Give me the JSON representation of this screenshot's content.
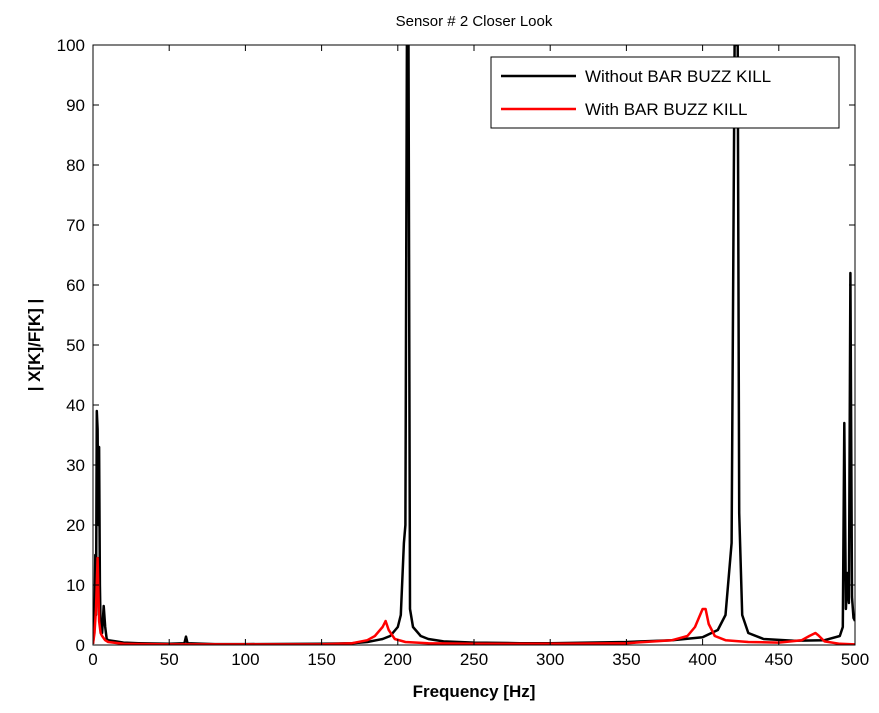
{
  "chart_data": {
    "type": "line",
    "title": "Sensor # 2 Closer Look",
    "xlabel": "Frequency [Hz]",
    "ylabel": "| X[K]/F[K] |",
    "xlim": [
      0,
      500
    ],
    "ylim": [
      0,
      100
    ],
    "xticks": [
      0,
      50,
      100,
      150,
      200,
      250,
      300,
      350,
      400,
      450,
      500
    ],
    "yticks": [
      0,
      10,
      20,
      30,
      40,
      50,
      60,
      70,
      80,
      90,
      100
    ],
    "grid": false,
    "legend_position": "top-right",
    "series": [
      {
        "name": "Without BAR BUZZ KILL",
        "color": "#000000",
        "points": [
          [
            0,
            0.2
          ],
          [
            1,
            3
          ],
          [
            1.5,
            15
          ],
          [
            2,
            5
          ],
          [
            2.5,
            39
          ],
          [
            3,
            36
          ],
          [
            3.5,
            20
          ],
          [
            4,
            33
          ],
          [
            4.5,
            10
          ],
          [
            5,
            3
          ],
          [
            6,
            2
          ],
          [
            7,
            6.5
          ],
          [
            8,
            3
          ],
          [
            9,
            1
          ],
          [
            10,
            0.8
          ],
          [
            15,
            0.6
          ],
          [
            20,
            0.4
          ],
          [
            30,
            0.3
          ],
          [
            50,
            0.2
          ],
          [
            60,
            0.3
          ],
          [
            61,
            1.4
          ],
          [
            62,
            0.3
          ],
          [
            80,
            0.15
          ],
          [
            100,
            0.15
          ],
          [
            150,
            0.2
          ],
          [
            170,
            0.3
          ],
          [
            180,
            0.5
          ],
          [
            190,
            1.0
          ],
          [
            195,
            1.5
          ],
          [
            200,
            3
          ],
          [
            202,
            5
          ],
          [
            204,
            17
          ],
          [
            205,
            20
          ],
          [
            206,
            100
          ],
          [
            207,
            100
          ],
          [
            208,
            6
          ],
          [
            210,
            3
          ],
          [
            215,
            1.5
          ],
          [
            220,
            1.0
          ],
          [
            230,
            0.6
          ],
          [
            250,
            0.4
          ],
          [
            280,
            0.3
          ],
          [
            300,
            0.3
          ],
          [
            350,
            0.5
          ],
          [
            380,
            0.8
          ],
          [
            400,
            1.3
          ],
          [
            410,
            2.5
          ],
          [
            415,
            5
          ],
          [
            419,
            17
          ],
          [
            421,
            100
          ],
          [
            423,
            100
          ],
          [
            424,
            22
          ],
          [
            426,
            5
          ],
          [
            430,
            2
          ],
          [
            440,
            1.0
          ],
          [
            460,
            0.7
          ],
          [
            480,
            0.8
          ],
          [
            490,
            1.5
          ],
          [
            492,
            3
          ],
          [
            493,
            37
          ],
          [
            494,
            6
          ],
          [
            495,
            12
          ],
          [
            496,
            7
          ],
          [
            497,
            62
          ],
          [
            498,
            8
          ],
          [
            499,
            4.5
          ],
          [
            500,
            4
          ]
        ]
      },
      {
        "name": "With BAR BUZZ KILL",
        "color": "#ff0000",
        "points": [
          [
            0,
            0.2
          ],
          [
            1,
            2
          ],
          [
            2,
            6
          ],
          [
            3,
            14.5
          ],
          [
            4,
            4
          ],
          [
            5,
            2
          ],
          [
            6,
            1.5
          ],
          [
            8,
            0.8
          ],
          [
            10,
            0.5
          ],
          [
            20,
            0.2
          ],
          [
            50,
            0.1
          ],
          [
            100,
            0.1
          ],
          [
            150,
            0.1
          ],
          [
            170,
            0.3
          ],
          [
            180,
            0.8
          ],
          [
            185,
            1.5
          ],
          [
            190,
            3
          ],
          [
            192,
            4
          ],
          [
            194,
            2.5
          ],
          [
            198,
            1.0
          ],
          [
            205,
            0.5
          ],
          [
            220,
            0.3
          ],
          [
            250,
            0.2
          ],
          [
            300,
            0.2
          ],
          [
            350,
            0.3
          ],
          [
            380,
            0.8
          ],
          [
            390,
            1.5
          ],
          [
            395,
            3
          ],
          [
            400,
            6
          ],
          [
            402,
            6
          ],
          [
            404,
            3.5
          ],
          [
            408,
            1.5
          ],
          [
            415,
            0.8
          ],
          [
            430,
            0.5
          ],
          [
            450,
            0.4
          ],
          [
            465,
            0.8
          ],
          [
            470,
            1.5
          ],
          [
            474,
            2
          ],
          [
            476,
            1.6
          ],
          [
            480,
            0.6
          ],
          [
            490,
            0.2
          ],
          [
            500,
            0.1
          ]
        ]
      }
    ]
  }
}
